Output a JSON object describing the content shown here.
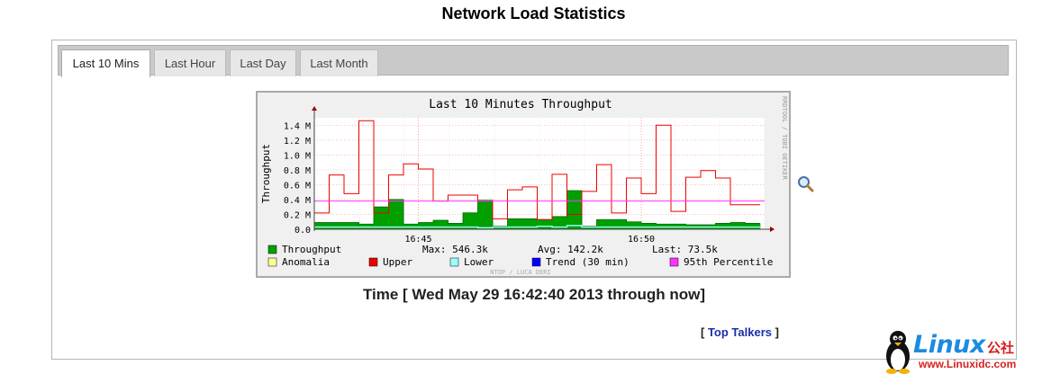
{
  "page": {
    "title": "Network Load Statistics"
  },
  "tabs": [
    {
      "label": "Last 10 Mins",
      "active": true
    },
    {
      "label": "Last Hour",
      "active": false
    },
    {
      "label": "Last Day",
      "active": false
    },
    {
      "label": "Last Month",
      "active": false
    }
  ],
  "graph": {
    "side_credit": "RRDTOOL / TOBI OETIKER",
    "footer_credit": "NTOP / LUCA DERI",
    "stats": {
      "max": "Max: 546.3k",
      "avg": "Avg: 142.2k",
      "last": "Last: 73.5k"
    },
    "legend": [
      {
        "label": "Throughput",
        "color": "#00a000"
      },
      {
        "label": "Anomalia",
        "color": "#ffff99"
      },
      {
        "label": "Upper",
        "color": "#ee0000"
      },
      {
        "label": "Lower",
        "color": "#99ffff"
      },
      {
        "label": "Trend (30 min)",
        "color": "#0000ff"
      },
      {
        "label": "95th Percentile",
        "color": "#ff33ff"
      }
    ]
  },
  "chart_data": {
    "type": "area",
    "title": "Last 10 Minutes Throughput",
    "ylabel": "Throughput",
    "xlabel": "",
    "ylim": [
      0,
      1.5
    ],
    "y_unit": "M",
    "y_ticks": [
      "0.0",
      "0.2 M",
      "0.4 M",
      "0.6 M",
      "0.8 M",
      "1.0 M",
      "1.2 M",
      "1.4 M"
    ],
    "y_tick_values": [
      0,
      0.2,
      0.4,
      0.6,
      0.8,
      1.0,
      1.2,
      1.4
    ],
    "x_ticks": [
      "16:45",
      "16:50"
    ],
    "grid": true,
    "percentile_95": 0.38,
    "series": [
      {
        "name": "Throughput",
        "type": "area",
        "color": "#00a000",
        "values": [
          0.09,
          0.09,
          0.09,
          0.07,
          0.3,
          0.4,
          0.07,
          0.09,
          0.12,
          0.08,
          0.22,
          0.39,
          0.04,
          0.14,
          0.14,
          0.13,
          0.17,
          0.52,
          0.04,
          0.13,
          0.13,
          0.1,
          0.08,
          0.07,
          0.07,
          0.06,
          0.06,
          0.08,
          0.09,
          0.08
        ]
      },
      {
        "name": "Upper",
        "type": "line",
        "color": "#ee0000",
        "values": [
          0.22,
          0.73,
          0.48,
          1.46,
          0.22,
          0.73,
          0.88,
          0.81,
          0.38,
          0.46,
          0.46,
          0.38,
          0.14,
          0.53,
          0.57,
          0.13,
          0.74,
          0.2,
          0.51,
          0.87,
          0.22,
          0.69,
          0.48,
          1.4,
          0.24,
          0.7,
          0.79,
          0.69,
          0.33,
          0.33
        ]
      },
      {
        "name": "Lower",
        "type": "line",
        "color": "#99ffff",
        "values": [
          0.03,
          0.03,
          0.03,
          0.03,
          0.03,
          0.03,
          0.03,
          0.03,
          0.03,
          0.03,
          0.03,
          0.02,
          0.03,
          0.03,
          0.03,
          0.04,
          0.03,
          0.05,
          0.03,
          0.03,
          0.03,
          0.03,
          0.03,
          0.03,
          0.03,
          0.03,
          0.03,
          0.03,
          0.03,
          0.03
        ]
      }
    ]
  },
  "time_range": "Time [ Wed May 29 16:42:40 2013 through now]",
  "links": {
    "top_talkers_open": "[ ",
    "top_talkers": "Top Talkers",
    "top_talkers_close": " ]"
  },
  "watermark": {
    "brand": "Linux",
    "brand_cn": "公社",
    "url": "www.Linuxidc.com"
  }
}
